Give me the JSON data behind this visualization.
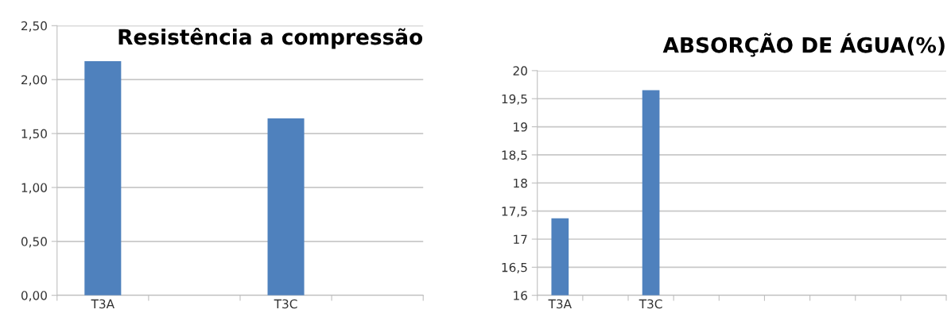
{
  "chart_data": [
    {
      "type": "bar",
      "title": "Resistência a compressão",
      "categories": [
        "T3A",
        null,
        "T3C",
        null
      ],
      "values": [
        2.17,
        null,
        1.64,
        null
      ],
      "color": "#4f81bd",
      "ylim": [
        0,
        2.5
      ],
      "yticks": [
        {
          "value": 0,
          "label": "0,00"
        },
        {
          "value": 0.5,
          "label": "0,50"
        },
        {
          "value": 1,
          "label": "1,00"
        },
        {
          "value": 1.5,
          "label": "1,50"
        },
        {
          "value": 2,
          "label": "2,00"
        },
        {
          "value": 2.5,
          "label": "2,50"
        }
      ],
      "grid": "y",
      "legend": false
    },
    {
      "type": "bar",
      "title": "ABSORÇÃO DE ÁGUA(%)",
      "categories": [
        "T3A",
        null,
        "T3C",
        null,
        null,
        null,
        null,
        null,
        null
      ],
      "values": [
        17.37,
        null,
        19.65,
        null,
        null,
        null,
        null,
        null,
        null
      ],
      "color": "#4f81bd",
      "ylim": [
        16,
        20
      ],
      "yticks": [
        16,
        {
          "value": 16.5,
          "label": "16,5"
        },
        17,
        {
          "value": 17.5,
          "label": "17,5"
        },
        18,
        {
          "value": 18.5,
          "label": "18,5"
        },
        19,
        {
          "value": 19.5,
          "label": "19,5"
        },
        20
      ],
      "grid": "y",
      "legend": false
    }
  ]
}
